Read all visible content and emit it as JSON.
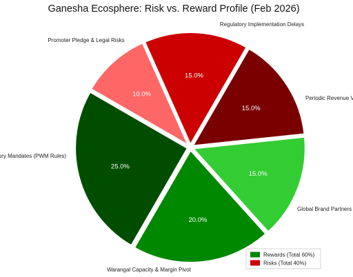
{
  "chart_data": {
    "type": "pie",
    "title": "Ganesha Ecosphere: Risk vs. Reward Profile (Feb 2026)",
    "slices": [
      {
        "label": "Regulatory Implementation Delays",
        "value": 15.0,
        "display": "15.0%",
        "color": "#cc0000",
        "group": "risk"
      },
      {
        "label": "Periodic Revenue V",
        "value": 15.0,
        "display": "15.0%",
        "color": "#7a0000",
        "group": "risk"
      },
      {
        "label": "Global Brand Partners",
        "value": 15.0,
        "display": "15.0%",
        "color": "#33cc33",
        "group": "reward"
      },
      {
        "label": "Warangal Capacity & Margin Pivot",
        "value": 20.0,
        "display": "20.0%",
        "color": "#008800",
        "group": "reward"
      },
      {
        "label": "ory Mandates (PWM Rules)",
        "value": 25.0,
        "display": "25.0%",
        "color": "#004d00",
        "group": "reward"
      },
      {
        "label": "Promoter Pledge & Legal Risks",
        "value": 10.0,
        "display": "10.0%",
        "color": "#ff6666",
        "group": "risk"
      }
    ],
    "legend": {
      "placement": "bottom-right",
      "entries": [
        {
          "label": "Rewards (Total 60%)",
          "color": "#008800"
        },
        {
          "label": "Risks (Total 40%)",
          "color": "#cc0000"
        }
      ]
    }
  }
}
